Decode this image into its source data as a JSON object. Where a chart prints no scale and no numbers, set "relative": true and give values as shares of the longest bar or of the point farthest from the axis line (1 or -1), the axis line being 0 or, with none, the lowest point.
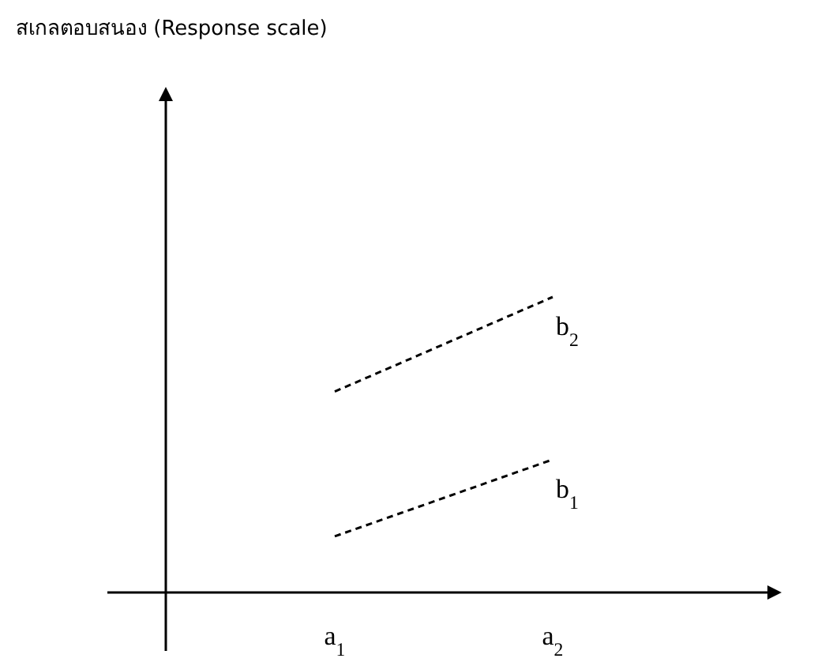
{
  "chart_data": {
    "type": "line",
    "annotations": [
      "สเกลตอบสนอง (Response scale)"
    ],
    "categories": [
      "a$_{1}$",
      "a$_{2}$"
    ],
    "series": [
      {
        "name": "b$_{2}$",
        "color": "#000000",
        "values": [
          0.68,
          1
        ]
      },
      {
        "name": "b$_{1}$",
        "color": "#000000",
        "values": [
          0.19,
          0.45
        ]
      }
    ],
    "relative": true,
    "marker": "none",
    "line_style": "dashed",
    "legend": false
  }
}
